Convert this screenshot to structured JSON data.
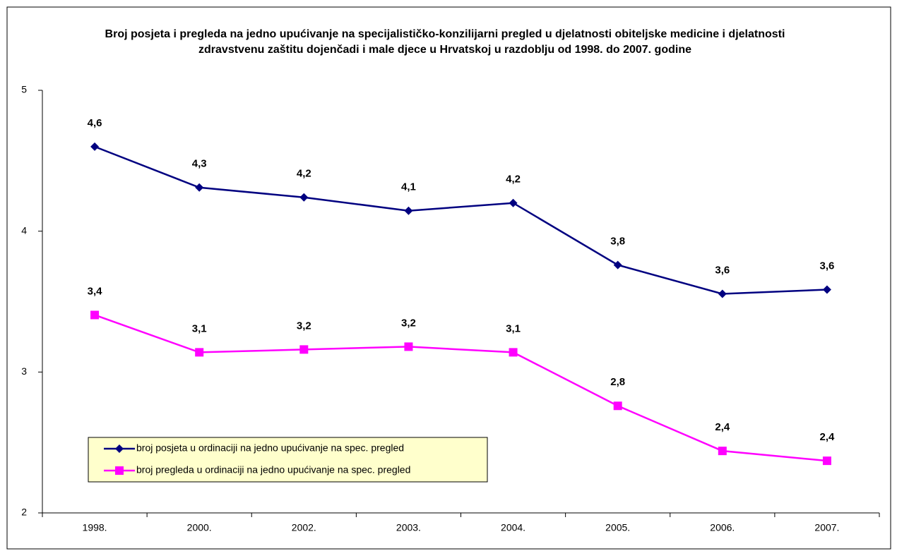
{
  "chart_data": {
    "type": "line",
    "title": "Broj posjeta i pregleda na jedno upućivanje na specijalističko-konzilijarni pregled u djelatnosti obiteljske medicine i djelatnosti zdravstvenu zaštitu dojenčadi i male djece u Hrvatskoj u razdoblju od 1998. do 2007. godine",
    "categories": [
      "1998.",
      "2000.",
      "2002.",
      "2003.",
      "2004.",
      "2005.",
      "2006.",
      "2007."
    ],
    "series": [
      {
        "name": "broj posjeta u ordinaciji na jedno upućivanje na spec. pregled",
        "color": "#000080",
        "marker": "diamond",
        "values": [
          4.6,
          4.31,
          4.24,
          4.145,
          4.2,
          3.76,
          3.555,
          3.585
        ],
        "value_labels": [
          "4,6",
          "4,3",
          "4,2",
          "4,1",
          "4,2",
          "3,8",
          "3,6",
          "3,6"
        ]
      },
      {
        "name": "broj pregleda u ordinaciji na jedno upućivanje na spec. pregled",
        "color": "#ff00ff",
        "marker": "square",
        "values": [
          3.405,
          3.14,
          3.16,
          3.18,
          3.14,
          2.76,
          2.44,
          2.37
        ],
        "value_labels": [
          "3,4",
          "3,1",
          "3,2",
          "3,2",
          "3,1",
          "2,8",
          "2,4",
          "2,4"
        ]
      }
    ],
    "ylim": [
      2,
      5
    ],
    "yticks": [
      2,
      3,
      4,
      5
    ],
    "grid": false
  }
}
